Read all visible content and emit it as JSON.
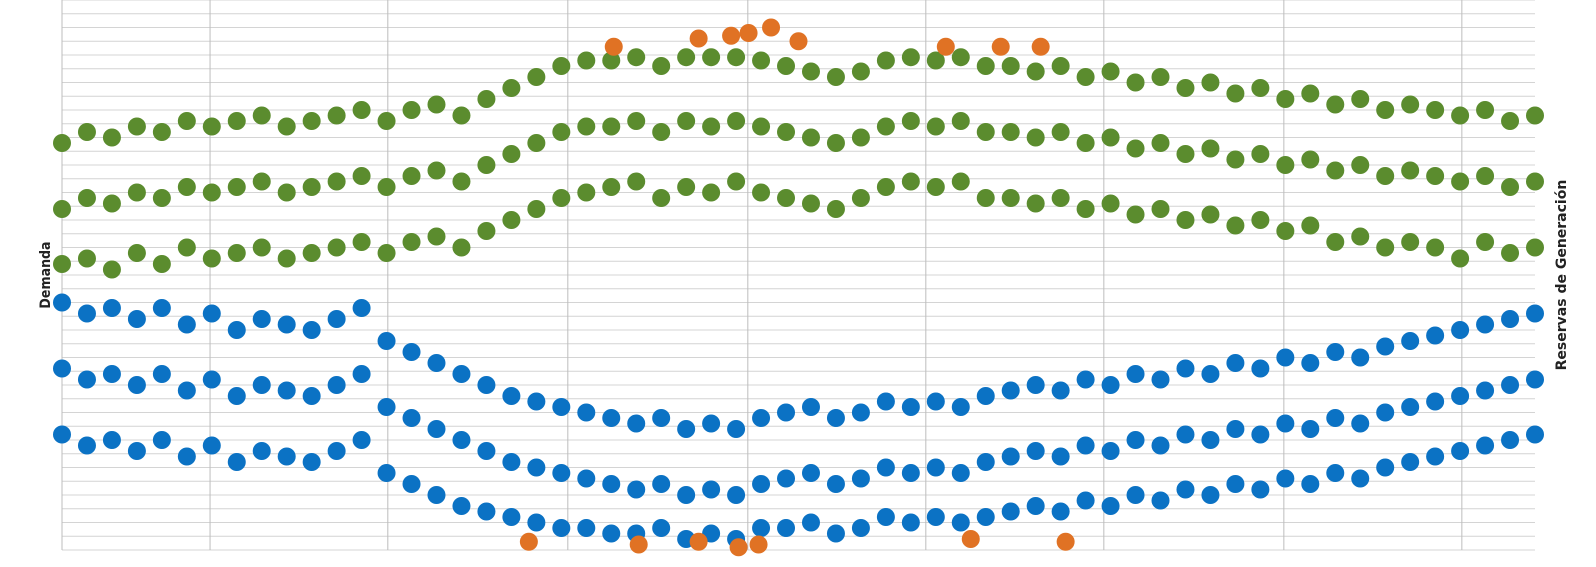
{
  "chart_data": {
    "type": "scatter",
    "y_label": "Demanda",
    "y2_label": "Reservas de Generación",
    "xlim": [
      0,
      59
    ],
    "ylim": [
      0,
      100
    ],
    "grid": true,
    "xgrid": [
      0,
      5.93,
      13.05,
      20.26,
      27.47,
      34.6,
      41.73,
      48.94,
      56.07
    ],
    "ygrid": [
      0,
      2.5,
      5,
      7.5,
      10,
      12.5,
      15,
      17.5,
      20,
      22.5,
      25,
      27.5,
      30,
      32.5,
      35,
      37.5,
      40,
      42.5,
      45,
      47.5,
      50,
      52.5,
      55,
      57.5,
      60,
      62.5,
      65,
      67.5,
      70,
      72.5,
      75,
      77.5,
      80,
      82.5,
      85,
      87.5,
      90,
      92.5,
      95,
      97.5,
      100
    ],
    "x": [
      0,
      1,
      2,
      3,
      4,
      5,
      6,
      7,
      8,
      9,
      10,
      11,
      12,
      13,
      14,
      15,
      16,
      17,
      18,
      19,
      20,
      21,
      22,
      23,
      24,
      25,
      26,
      27,
      28,
      29,
      30,
      31,
      32,
      33,
      34,
      35,
      36,
      37,
      38,
      39,
      40,
      41,
      42,
      43,
      44,
      45,
      46,
      47,
      48,
      49,
      50,
      51,
      52,
      53,
      54,
      55,
      56,
      57,
      58,
      59
    ],
    "series": [
      {
        "color": "#5b8c2e",
        "values": [
          74,
          76,
          75,
          77,
          76,
          78,
          77,
          78,
          79,
          77,
          78,
          79,
          80,
          78,
          80,
          81,
          79,
          82,
          84,
          86,
          88,
          89,
          89,
          89.6,
          88,
          89.6,
          89.6,
          89.6,
          89,
          88,
          87,
          86,
          87,
          89,
          89.6,
          89,
          89.6,
          88,
          88,
          87,
          88,
          86,
          87,
          85,
          86,
          84,
          85,
          83,
          84,
          82,
          83,
          81,
          82,
          80,
          81,
          80,
          79,
          80,
          78,
          79
        ]
      },
      {
        "color": "#5b8c2e",
        "values": [
          62,
          64,
          63,
          65,
          64,
          66,
          65,
          66,
          67,
          65,
          66,
          67,
          68,
          66,
          68,
          69,
          67,
          70,
          72,
          74,
          76,
          77,
          77,
          78,
          76,
          78,
          77,
          78,
          77,
          76,
          75,
          74,
          75,
          77,
          78,
          77,
          78,
          76,
          76,
          75,
          76,
          74,
          75,
          73,
          74,
          72,
          73,
          71,
          72,
          70,
          71,
          69,
          70,
          68,
          69,
          68,
          67,
          68,
          66,
          67
        ]
      },
      {
        "color": "#5b8c2e",
        "values": [
          52,
          53,
          51,
          54,
          52,
          55,
          53,
          54,
          55,
          53,
          54,
          55,
          56,
          54,
          56,
          57,
          55,
          58,
          60,
          62,
          64,
          65,
          66,
          67,
          64,
          66,
          65,
          67,
          65,
          64,
          63,
          62,
          64,
          66,
          67,
          66,
          67,
          64,
          64,
          63,
          64,
          62,
          63,
          61,
          62,
          60,
          61,
          59,
          60,
          58,
          59,
          56,
          57,
          55,
          56,
          55,
          53,
          56,
          54,
          55
        ]
      },
      {
        "color": "#0b72c4",
        "values": [
          45,
          43,
          44,
          42,
          44,
          41,
          43,
          40,
          42,
          41,
          40,
          42,
          44,
          38,
          36,
          34,
          32,
          30,
          28,
          27,
          26,
          25,
          24,
          23,
          24,
          22,
          23,
          22,
          24,
          25,
          26,
          24,
          25,
          27,
          26,
          27,
          26,
          28,
          29,
          30,
          29,
          31,
          30,
          32,
          31,
          33,
          32,
          34,
          33,
          35,
          34,
          36,
          35,
          37,
          38,
          39,
          40,
          41,
          42,
          43
        ]
      },
      {
        "color": "#0b72c4",
        "values": [
          33,
          31,
          32,
          30,
          32,
          29,
          31,
          28,
          30,
          29,
          28,
          30,
          32,
          26,
          24,
          22,
          20,
          18,
          16,
          15,
          14,
          13,
          12,
          11,
          12,
          10,
          11,
          10,
          12,
          13,
          14,
          12,
          13,
          15,
          14,
          15,
          14,
          16,
          17,
          18,
          17,
          19,
          18,
          20,
          19,
          21,
          20,
          22,
          21,
          23,
          22,
          24,
          23,
          25,
          26,
          27,
          28,
          29,
          30,
          31
        ]
      },
      {
        "color": "#0b72c4",
        "values": [
          21,
          19,
          20,
          18,
          20,
          17,
          19,
          16,
          18,
          17,
          16,
          18,
          20,
          14,
          12,
          10,
          8,
          7,
          6,
          5,
          4,
          4,
          3,
          3,
          4,
          2,
          3,
          2,
          4,
          4,
          5,
          3,
          4,
          6,
          5,
          6,
          5,
          6,
          7,
          8,
          7,
          9,
          8,
          10,
          9,
          11,
          10,
          12,
          11,
          13,
          12,
          14,
          13,
          15,
          16,
          17,
          18,
          19,
          20,
          21
        ]
      },
      {
        "color": "#e07224",
        "x": [
          22.1,
          25.5,
          26.8,
          27.5,
          28.4,
          29.5,
          35.4,
          37.6,
          39.2,
          18.7,
          23.1,
          25.5,
          27.1,
          27.9,
          36.4,
          40.2
        ],
        "values": [
          91.5,
          93,
          93.5,
          94,
          95,
          92.5,
          91.5,
          91.5,
          91.5,
          1.5,
          1,
          1.5,
          0.5,
          1,
          2,
          1.5
        ]
      }
    ]
  }
}
